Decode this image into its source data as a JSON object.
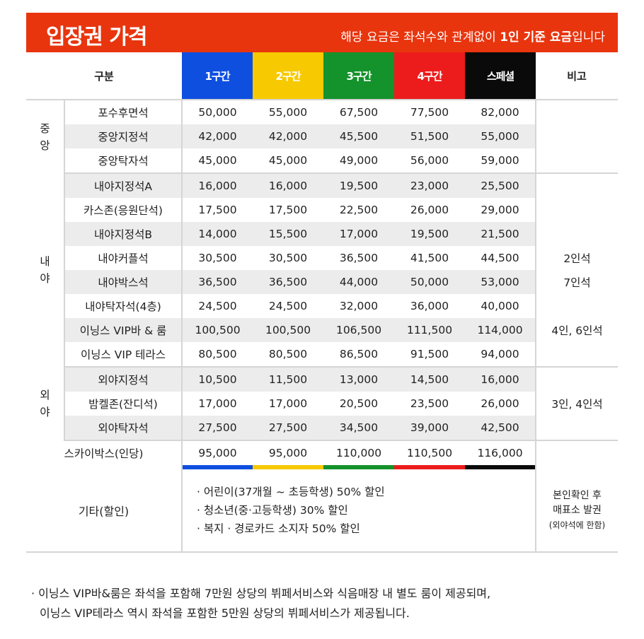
{
  "banner": {
    "title": "입장권 가격",
    "note_prefix": "해당 요금은 좌석수와 관계없이 ",
    "note_bold": "1인 기준 요금",
    "note_suffix": "입니다"
  },
  "header": {
    "category": "구분",
    "zones": [
      "1구간",
      "2구간",
      "3구간",
      "4구간",
      "스페셜"
    ],
    "remarks": "비고"
  },
  "colors": {
    "banner": "#e8350e",
    "zone1": "#0e4fe0",
    "zone2": "#f7c900",
    "zone3": "#14922b",
    "zone4": "#ec1c1c",
    "special": "#0a0a0a",
    "row_shade": "#ececec"
  },
  "sections": [
    {
      "name_line1": "중",
      "name_line2": "앙",
      "rows": [
        {
          "seat": "포수후면석",
          "prices": [
            "50,000",
            "55,000",
            "67,500",
            "77,500",
            "82,000"
          ],
          "note": ""
        },
        {
          "seat": "중앙지정석",
          "prices": [
            "42,000",
            "42,000",
            "45,500",
            "51,500",
            "55,000"
          ],
          "note": ""
        },
        {
          "seat": "중앙탁자석",
          "prices": [
            "45,000",
            "45,000",
            "49,000",
            "56,000",
            "59,000"
          ],
          "note": ""
        }
      ]
    },
    {
      "name_line1": "내",
      "name_line2": "야",
      "rows": [
        {
          "seat": "내야지정석A",
          "prices": [
            "16,000",
            "16,000",
            "19,500",
            "23,000",
            "25,500"
          ],
          "note": ""
        },
        {
          "seat": "카스존(응원단석)",
          "prices": [
            "17,500",
            "17,500",
            "22,500",
            "26,000",
            "29,000"
          ],
          "note": ""
        },
        {
          "seat": "내야지정석B",
          "prices": [
            "14,000",
            "15,500",
            "17,000",
            "19,500",
            "21,500"
          ],
          "note": ""
        },
        {
          "seat": "내야커플석",
          "prices": [
            "30,500",
            "30,500",
            "36,500",
            "41,500",
            "44,500"
          ],
          "note": "2인석"
        },
        {
          "seat": "내야박스석",
          "prices": [
            "36,500",
            "36,500",
            "44,000",
            "50,000",
            "53,000"
          ],
          "note": "7인석"
        },
        {
          "seat": "내야탁자석(4층)",
          "prices": [
            "24,500",
            "24,500",
            "32,000",
            "36,000",
            "40,000"
          ],
          "note": ""
        },
        {
          "seat": "이닝스 VIP바 & 룸",
          "prices": [
            "100,500",
            "100,500",
            "106,500",
            "111,500",
            "114,000"
          ],
          "note": "4인, 6인석"
        },
        {
          "seat": "이닝스 VIP 테라스",
          "prices": [
            "80,500",
            "80,500",
            "86,500",
            "91,500",
            "94,000"
          ],
          "note": ""
        }
      ]
    },
    {
      "name_line1": "외",
      "name_line2": "야",
      "rows": [
        {
          "seat": "외야지정석",
          "prices": [
            "10,500",
            "11,500",
            "13,000",
            "14,500",
            "16,000"
          ],
          "note": ""
        },
        {
          "seat": "밤켈존(잔디석)",
          "prices": [
            "17,000",
            "17,000",
            "20,500",
            "23,500",
            "26,000"
          ],
          "note": "3인, 4인석"
        },
        {
          "seat": "외야탁자석",
          "prices": [
            "27,500",
            "27,500",
            "34,500",
            "39,000",
            "42,500"
          ],
          "note": ""
        }
      ]
    }
  ],
  "skybox": {
    "label": "스카이박스(인당)",
    "prices": [
      "95,000",
      "95,000",
      "110,000",
      "110,500",
      "116,000"
    ]
  },
  "other": {
    "label": "기타(할인)",
    "discounts": [
      "· 어린이(37개월 ~ 초등학생) 50% 할인",
      "· 청소년(중·고등학생) 30% 할인",
      "· 복지 · 경로카드 소지자 50% 할인"
    ],
    "note_line1": "본인확인 후",
    "note_line2": "매표소 발권",
    "note_line3": "(외야석에 한함)"
  },
  "footnote": {
    "line1": "· 이닝스 VIP바&룸은 좌석을 포함해 7만원 상당의 뷔페서비스와 식음매장 내 별도 룸이 제공되며,",
    "line2": "이닝스 VIP테라스 역시 좌석을 포함한 5만원 상당의 뷔페서비스가 제공됩니다."
  }
}
